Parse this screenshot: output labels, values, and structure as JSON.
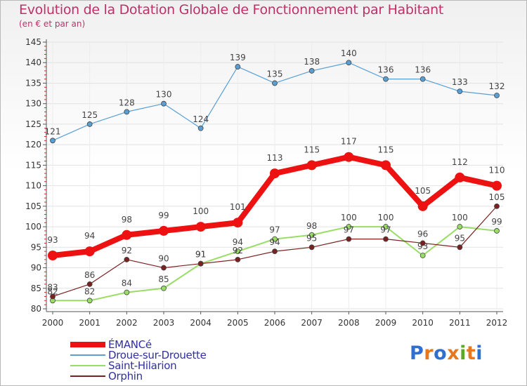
{
  "title": "Evolution de la Dotation Globale de Fonctionnement par Habitant",
  "subtitle": "(en € et par an)",
  "logo": {
    "text": "Proxiti",
    "letters": [
      "P",
      "r",
      "o",
      "x",
      "i",
      "t",
      "i"
    ],
    "colors": [
      "#2f6fcf",
      "#e8781e",
      "#2f6fcf",
      "#e8781e",
      "#5aaa2a",
      "#e8781e",
      "#2f6fcf"
    ]
  },
  "chart_data": {
    "type": "line",
    "title": "Evolution de la Dotation Globale de Fonctionnement par Habitant",
    "subtitle": "(en € et par an)",
    "xlabel": "",
    "ylabel": "",
    "ylim": [
      80,
      145
    ],
    "yticks": [
      80,
      85,
      90,
      95,
      100,
      105,
      110,
      115,
      120,
      125,
      130,
      135,
      140,
      145
    ],
    "categories": [
      "2000",
      "2001",
      "2002",
      "2003",
      "2004",
      "2005",
      "2006",
      "2007",
      "2008",
      "2009",
      "2010",
      "2011",
      "2012"
    ],
    "legend_position": "bottom-left",
    "series": [
      {
        "name": "ÉMANCé",
        "color": "#ee1111",
        "values": [
          93,
          94,
          98,
          99,
          100,
          101,
          113,
          115,
          117,
          115,
          105,
          112,
          110
        ],
        "labels": [
          "93",
          "94",
          "98",
          "99",
          "100",
          "101",
          "113",
          "115",
          "117",
          "115",
          "105",
          "112",
          "110"
        ]
      },
      {
        "name": "Droue-sur-Drouette",
        "color": "#5a9fd4",
        "values": [
          121,
          125,
          128,
          130,
          124,
          139,
          135,
          138,
          140,
          136,
          136,
          133,
          132
        ],
        "labels": [
          "121",
          "125",
          "128",
          "130",
          "124",
          "139",
          "135",
          "138",
          "140",
          "136",
          "136",
          "133",
          "132"
        ]
      },
      {
        "name": "Saint-Hilarion",
        "color": "#99dd66",
        "values": [
          82,
          82,
          84,
          85,
          91,
          94,
          97,
          98,
          100,
          100,
          93,
          100,
          99
        ],
        "labels": [
          "82",
          "82",
          "84",
          "85",
          "91",
          "94",
          "97",
          "98",
          "100",
          "100",
          "93",
          "100",
          "99"
        ]
      },
      {
        "name": "Orphin",
        "color": "#7a2020",
        "values": [
          83,
          86,
          92,
          90,
          91,
          92,
          94,
          95,
          97,
          97,
          96,
          95,
          105
        ],
        "labels": [
          "83",
          "86",
          "92",
          "90",
          "91",
          "92",
          "94",
          "95",
          "97",
          "97",
          "96",
          "95",
          "105"
        ]
      }
    ]
  }
}
